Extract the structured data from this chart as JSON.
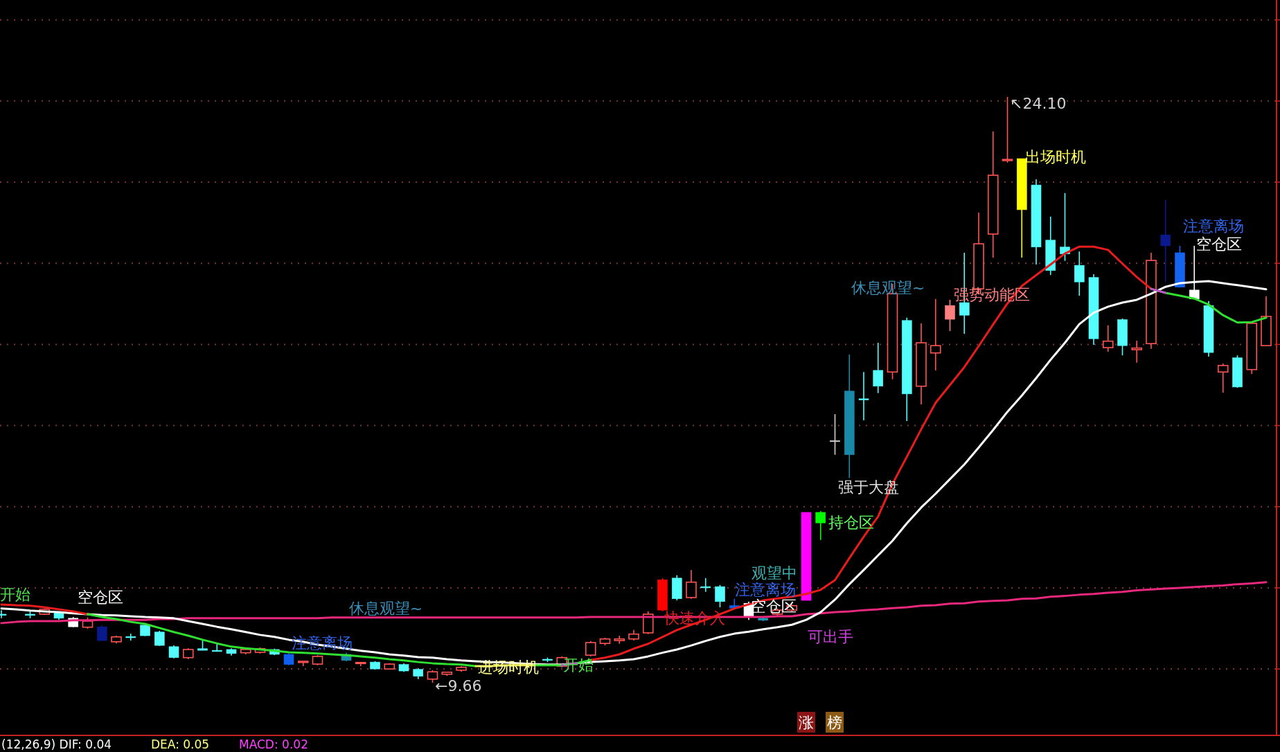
{
  "chart_data": {
    "type": "candlestick",
    "categories": [
      null,
      null,
      null,
      null,
      null,
      null,
      null,
      null,
      null,
      null,
      null,
      null,
      null,
      null,
      null,
      null,
      null,
      null,
      null,
      null,
      null,
      null,
      null,
      null,
      null,
      null,
      null,
      null,
      null,
      null,
      null,
      null,
      null,
      null,
      null,
      null,
      null,
      null,
      null,
      null,
      null,
      null,
      null,
      null,
      null,
      null,
      null,
      null,
      null,
      null,
      null,
      null,
      null,
      null,
      null,
      null,
      null,
      null,
      null,
      null,
      null,
      null,
      null,
      null,
      null,
      null,
      null,
      null,
      null,
      null,
      null,
      null,
      null,
      null,
      null,
      null,
      null,
      null,
      null,
      null,
      null,
      null,
      null,
      null,
      null,
      null,
      null,
      null,
      null
    ],
    "ohlc": [
      [
        11.35,
        11.45,
        11.25,
        11.33
      ],
      null,
      [
        11.35,
        11.42,
        11.25,
        11.32
      ],
      [
        11.35,
        11.49,
        11.33,
        11.47
      ],
      [
        11.39,
        11.42,
        11.21,
        11.25
      ],
      [
        11.25,
        11.28,
        11.03,
        11.04
      ],
      [
        11.03,
        11.27,
        10.99,
        11.18
      ],
      [
        11.04,
        11.08,
        10.69,
        10.7
      ],
      [
        10.67,
        10.82,
        10.63,
        10.79
      ],
      [
        10.8,
        10.87,
        10.7,
        10.77
      ],
      [
        11.08,
        11.13,
        10.81,
        10.82
      ],
      [
        10.91,
        10.94,
        10.57,
        10.58
      ],
      [
        10.55,
        10.58,
        10.26,
        10.28
      ],
      [
        10.28,
        10.51,
        10.24,
        10.48
      ],
      [
        10.5,
        10.72,
        10.46,
        10.46
      ],
      [
        10.46,
        10.65,
        10.43,
        10.43
      ],
      [
        10.48,
        10.51,
        10.33,
        10.38
      ],
      [
        10.4,
        10.51,
        10.36,
        10.48
      ],
      [
        10.41,
        10.53,
        10.38,
        10.5
      ],
      [
        10.48,
        10.5,
        10.34,
        10.36
      ],
      [
        10.36,
        10.38,
        10.09,
        10.11
      ],
      [
        10.16,
        10.19,
        10.07,
        10.19
      ],
      [
        10.12,
        10.34,
        10.09,
        10.31
      ],
      null,
      [
        10.36,
        10.4,
        10.19,
        10.21
      ],
      [
        10.14,
        10.16,
        10.07,
        10.16
      ],
      [
        10.17,
        10.19,
        9.99,
        10.0
      ],
      [
        10.0,
        10.14,
        9.99,
        10.12
      ],
      [
        10.11,
        10.14,
        9.93,
        9.95
      ],
      [
        9.99,
        10.02,
        9.75,
        9.82
      ],
      [
        9.75,
        9.97,
        9.66,
        9.93
      ],
      [
        9.87,
        9.93,
        9.83,
        9.92
      ],
      [
        9.97,
        10.07,
        9.93,
        10.04
      ],
      null,
      null,
      null,
      null,
      null,
      [
        10.24,
        10.28,
        10.17,
        10.21
      ],
      [
        10.07,
        10.31,
        10.04,
        10.28
      ],
      null,
      [
        10.34,
        10.69,
        10.31,
        10.65
      ],
      [
        10.63,
        10.77,
        10.58,
        10.74
      ],
      [
        10.7,
        10.82,
        10.62,
        10.74
      ],
      [
        10.74,
        10.96,
        10.7,
        10.86
      ],
      [
        10.89,
        11.42,
        10.86,
        11.35
      ],
      [
        12.2,
        12.24,
        11.42,
        11.45
      ],
      [
        12.24,
        12.31,
        11.69,
        11.73
      ],
      [
        11.76,
        12.44,
        11.73,
        12.14
      ],
      [
        12.03,
        12.24,
        11.9,
        12.0
      ],
      [
        12.03,
        12.07,
        11.52,
        11.66
      ],
      [
        11.56,
        11.73,
        11.49,
        11.5
      ],
      [
        11.62,
        11.66,
        11.21,
        11.28
      ],
      [
        11.25,
        11.3,
        11.18,
        11.2
      ],
      [
        11.35,
        11.49,
        11.32,
        11.45
      ],
      [
        11.45,
        11.59,
        11.42,
        11.56
      ],
      [
        13.86,
        13.86,
        11.69,
        11.69
      ],
      [
        13.86,
        13.89,
        13.18,
        13.6
      ],
      [
        15.63,
        16.28,
        15.28,
        15.62
      ],
      [
        16.85,
        17.75,
        14.71,
        15.28
      ],
      [
        16.66,
        17.32,
        16.13,
        16.63
      ],
      [
        17.36,
        18.04,
        16.8,
        16.97
      ],
      [
        17.32,
        19.49,
        17.14,
        19.25
      ],
      [
        18.59,
        18.66,
        16.11,
        16.78
      ],
      [
        16.97,
        18.52,
        16.52,
        18.04
      ],
      [
        17.79,
        19.12,
        17.36,
        17.97
      ],
      [
        18.96,
        19.1,
        18.33,
        18.62
      ],
      [
        19.03,
        20.26,
        18.26,
        18.72
      ],
      [
        19.37,
        21.25,
        19.24,
        20.48
      ],
      [
        20.72,
        23.25,
        20.14,
        22.17
      ],
      [
        22.53,
        24.1,
        22.48,
        22.56
      ],
      [
        22.58,
        22.58,
        20.14,
        21.32
      ],
      [
        21.93,
        22.07,
        19.97,
        20.4
      ],
      [
        20.57,
        21.15,
        19.71,
        19.82
      ],
      [
        20.4,
        21.73,
        20.06,
        20.23
      ],
      [
        19.95,
        20.29,
        19.2,
        19.54
      ],
      [
        19.65,
        19.73,
        17.99,
        18.14
      ],
      [
        17.92,
        18.47,
        17.82,
        18.08
      ],
      [
        18.61,
        18.64,
        17.73,
        17.97
      ],
      [
        17.87,
        18.09,
        17.55,
        17.91
      ],
      [
        18.02,
        20.26,
        17.89,
        20.07
      ],
      [
        20.7,
        21.56,
        19.54,
        20.43
      ],
      [
        20.26,
        20.43,
        19.41,
        19.41
      ],
      [
        19.34,
        20.43,
        19.12,
        19.12
      ],
      [
        18.96,
        19.07,
        17.7,
        17.8
      ],
      [
        17.32,
        17.53,
        16.81,
        17.48
      ],
      [
        17.67,
        17.73,
        16.93,
        16.95
      ],
      [
        17.38,
        18.52,
        17.27,
        18.52
      ],
      [
        17.97,
        19.19,
        17.97,
        18.69
      ]
    ],
    "colors": [
      "#54fcfc",
      null,
      "#54fcfc",
      "#ff5454",
      "#54fcfc",
      "#ffffff",
      "#ff5454",
      "#0a1a8c",
      "#ff5454",
      "#54fcfc",
      "#54fcfc",
      "#54fcfc",
      "#54fcfc",
      "#ff5454",
      "#54fcfc",
      "#54fcfc",
      "#54fcfc",
      "#ff5454",
      "#ff5454",
      "#54fcfc",
      "#1060f0",
      "#ff5454",
      "#ff5454",
      null,
      "#1a88a8",
      "#ff5454",
      "#54fcfc",
      "#ff5454",
      "#54fcfc",
      "#54fcfc",
      "#ff5454",
      "#ff5454",
      "#ff5454",
      null,
      null,
      null,
      null,
      null,
      "#54fcfc",
      "#ff5454",
      null,
      "#ff5454",
      "#ff5454",
      "#ff5454",
      "#ff5454",
      "#ff5454",
      "#ff0000",
      "#54fcfc",
      "#ff5454",
      "#54fcfc",
      "#54fcfc",
      "#1060f0",
      "#ffffff",
      "#1a9ab8",
      "#ff5454",
      "#ff5454",
      "#ff00ff",
      "#00ff00",
      "#d0d0d0",
      "#1a88a8",
      "#54fcfc",
      "#54fcfc",
      "#ff5454",
      "#54fcfc",
      "#ff5454",
      "#ff5454",
      "#ff8080",
      "#54fcfc",
      "#ff5454",
      "#ff5454",
      "#ff5454",
      "#ffff00",
      "#54fcfc",
      "#54fcfc",
      "#54fcfc",
      "#54fcfc",
      "#54fcfc",
      "#ff5454",
      "#54fcfc",
      "#ff5454",
      "#ff5454",
      "#0a1a8c",
      "#1464f0",
      "#ffffff",
      "#54fcfc",
      "#ff5454",
      "#54fcfc",
      "#ff5454",
      "#ff5454"
    ],
    "series": [
      {
        "type": "line",
        "color": "#e8287c",
        "values": [
          11.13,
          11.16,
          11.18,
          11.18,
          11.18,
          11.2,
          11.2,
          11.21,
          11.21,
          11.21,
          11.21,
          11.23,
          11.23,
          11.25,
          11.25,
          11.25,
          11.25,
          11.25,
          11.25,
          11.25,
          11.25,
          11.25,
          11.25,
          11.27,
          11.27,
          11.27,
          11.27,
          11.27,
          11.27,
          11.27,
          11.27,
          11.27,
          11.27,
          11.27,
          11.27,
          11.27,
          11.27,
          11.27,
          11.27,
          11.27,
          11.27,
          11.28,
          11.28,
          11.28,
          11.28,
          11.28,
          11.28,
          11.28,
          11.28,
          11.28,
          11.28,
          11.28,
          11.28,
          11.28,
          11.3,
          11.3,
          11.35,
          11.37,
          11.4,
          11.42,
          11.45,
          11.47,
          11.5,
          11.52,
          11.56,
          11.57,
          11.61,
          11.62,
          11.66,
          11.68,
          11.69,
          11.73,
          11.74,
          11.78,
          11.8,
          11.83,
          11.85,
          11.88,
          11.9,
          11.94,
          11.96,
          11.98,
          12.0,
          12.02,
          12.04,
          12.06,
          12.09,
          12.11,
          12.14
        ]
      },
      {
        "type": "line",
        "color": "#ffffff",
        "values": [
          11.49,
          11.47,
          11.44,
          11.42,
          11.4,
          11.37,
          11.35,
          11.33,
          11.32,
          11.3,
          11.28,
          11.27,
          11.25,
          11.18,
          11.11,
          11.04,
          10.98,
          10.91,
          10.84,
          10.79,
          10.72,
          10.67,
          10.6,
          10.55,
          10.5,
          10.45,
          10.41,
          10.36,
          10.33,
          10.29,
          10.28,
          10.24,
          10.21,
          10.19,
          10.17,
          10.16,
          10.14,
          10.12,
          10.11,
          10.11,
          10.14,
          10.17,
          10.19,
          10.21,
          10.24,
          10.31,
          10.4,
          10.48,
          10.58,
          10.69,
          10.79,
          10.87,
          10.92,
          10.98,
          11.03,
          11.09,
          11.21,
          11.4,
          11.71,
          12.09,
          12.44,
          12.8,
          13.16,
          13.59,
          13.98,
          14.32,
          14.68,
          15.04,
          15.46,
          15.89,
          16.34,
          16.74,
          17.17,
          17.62,
          18.04,
          18.5,
          18.78,
          18.93,
          19.03,
          19.1,
          19.25,
          19.42,
          19.51,
          19.54,
          19.56,
          19.51,
          19.46,
          19.41,
          19.36
        ]
      },
      {
        "type": "line",
        "color": "#e81c1c",
        "values": [
          11.59,
          11.57,
          11.56,
          11.52,
          11.47,
          11.42,
          11.35,
          null,
          null,
          null,
          null,
          null,
          null,
          null,
          null,
          null,
          null,
          null,
          null,
          null,
          null,
          null,
          null,
          null,
          null,
          null,
          null,
          null,
          null,
          null,
          null,
          null,
          null,
          null,
          null,
          null,
          null,
          null,
          null,
          null,
          null,
          10.22,
          10.28,
          10.36,
          10.5,
          10.62,
          10.79,
          10.96,
          11.09,
          11.21,
          11.35,
          11.49,
          11.59,
          11.69,
          11.74,
          11.78,
          11.85,
          11.95,
          12.19,
          12.73,
          13.26,
          13.76,
          14.56,
          15.23,
          15.91,
          16.56,
          17.0,
          17.44,
          17.96,
          18.49,
          19.01,
          19.44,
          19.71,
          19.97,
          20.24,
          20.41,
          20.41,
          20.33,
          19.99,
          19.66,
          19.37,
          null,
          null,
          null,
          null,
          null,
          null,
          null,
          null
        ]
      },
      {
        "type": "line",
        "color": "#30e030",
        "values": [
          null,
          null,
          null,
          null,
          null,
          null,
          11.35,
          11.28,
          11.23,
          11.16,
          11.11,
          11.01,
          10.91,
          10.82,
          10.72,
          10.63,
          10.55,
          10.51,
          10.48,
          10.45,
          10.41,
          10.4,
          10.38,
          10.36,
          10.34,
          10.31,
          10.28,
          10.24,
          10.21,
          10.17,
          10.14,
          10.12,
          10.11,
          10.07,
          null,
          null,
          null,
          10.09,
          10.09,
          10.09,
          10.14,
          10.22,
          null,
          null,
          null,
          null,
          null,
          null,
          null,
          null,
          null,
          null,
          null,
          null,
          null,
          null,
          null,
          null,
          null,
          null,
          null,
          null,
          null,
          null,
          null,
          null,
          null,
          null,
          null,
          null,
          null,
          null,
          null,
          null,
          null,
          null,
          null,
          null,
          null,
          null,
          19.37,
          19.27,
          19.2,
          19.13,
          18.98,
          18.72,
          18.54,
          18.55,
          18.66
        ]
      },
      {
        "type": "line",
        "color": "#e8e850",
        "values": [
          null,
          null,
          null,
          null,
          null,
          null,
          null,
          null,
          null,
          null,
          null,
          null,
          null,
          null,
          null,
          null,
          null,
          null,
          null,
          null,
          null,
          null,
          null,
          null,
          null,
          null,
          null,
          null,
          null,
          null,
          null,
          null,
          null,
          10.07,
          10.07,
          10.09,
          10.09,
          10.09,
          null,
          null,
          null,
          null,
          null,
          null,
          null,
          null,
          null,
          null,
          null,
          null,
          null,
          null,
          null,
          null,
          null,
          null,
          null,
          null,
          null,
          null,
          null,
          null,
          null,
          null,
          null,
          null,
          null,
          null,
          null,
          null,
          null,
          null,
          null,
          null,
          null,
          null,
          null,
          null,
          null,
          null,
          null,
          null,
          null,
          null,
          null,
          null,
          null,
          null,
          null
        ]
      },
      {
        "type": "line",
        "color": "#c050c8",
        "values": [
          null,
          null,
          null,
          null,
          null,
          null,
          null,
          null,
          null,
          null,
          null,
          null,
          null,
          null,
          null,
          null,
          null,
          null,
          null,
          null,
          null,
          null,
          null,
          null,
          null,
          null,
          null,
          null,
          null,
          null,
          null,
          null,
          null,
          null,
          null,
          null,
          null,
          null,
          null,
          10.09,
          10.14,
          null,
          null,
          null,
          null,
          null,
          null,
          null,
          null,
          null,
          null,
          null,
          null,
          null,
          null,
          null,
          null,
          null,
          null,
          null,
          null,
          null,
          null,
          null,
          null,
          null,
          null,
          null,
          null,
          null,
          null,
          null,
          null,
          null,
          null,
          null,
          null,
          null,
          null,
          null,
          19.37,
          19.27,
          null,
          null,
          null,
          null,
          null,
          null,
          null
        ]
      }
    ],
    "yticks": [
      {
        "value": 10,
        "label": null
      },
      {
        "value": 12,
        "label": null
      },
      {
        "value": 14,
        "label": null
      },
      {
        "value": 16,
        "label": null
      },
      {
        "value": 18,
        "label": null
      },
      {
        "value": 20,
        "label": null
      },
      {
        "value": 22,
        "label": null
      },
      {
        "value": 24,
        "label": null
      },
      {
        "value": 26,
        "label": null
      }
    ],
    "grid": "y",
    "annotations": [
      "开始",
      "空仓区",
      "注意离场",
      "休息观望~",
      "←9.66",
      "进场时机",
      "开始",
      "快速介入",
      "观望中",
      "注意离场",
      "空仓区",
      "可出手",
      "持仓区",
      "强于大盘",
      "休息观望~",
      "强势动能区",
      "↖24.10",
      "出场时机",
      "注意离场",
      "空仓区",
      "(12,26,9) DIF: 0.04",
      "DEA: 0.05",
      "MACD: 0.02",
      "涨",
      "榜"
    ]
  }
}
